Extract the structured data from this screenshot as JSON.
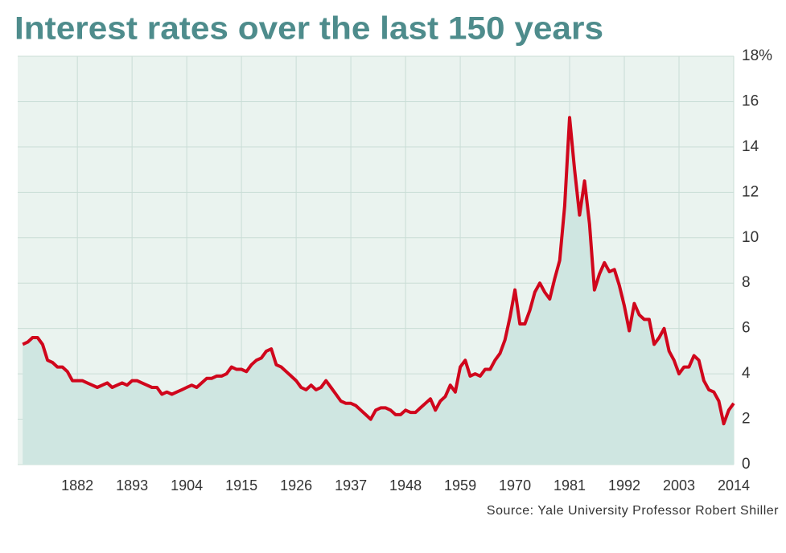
{
  "chart_data": {
    "type": "line",
    "title": "Interest rates over the last 150 years",
    "source": "Source: Yale University Professor Robert Shiller",
    "x": [
      1871,
      1872,
      1873,
      1874,
      1875,
      1876,
      1877,
      1878,
      1879,
      1880,
      1881,
      1882,
      1883,
      1884,
      1885,
      1886,
      1887,
      1888,
      1889,
      1890,
      1891,
      1892,
      1893,
      1894,
      1895,
      1896,
      1897,
      1898,
      1899,
      1900,
      1901,
      1902,
      1903,
      1904,
      1905,
      1906,
      1907,
      1908,
      1909,
      1910,
      1911,
      1912,
      1913,
      1914,
      1915,
      1916,
      1917,
      1918,
      1919,
      1920,
      1921,
      1922,
      1923,
      1924,
      1925,
      1926,
      1927,
      1928,
      1929,
      1930,
      1931,
      1932,
      1933,
      1934,
      1935,
      1936,
      1937,
      1938,
      1939,
      1940,
      1941,
      1942,
      1943,
      1944,
      1945,
      1946,
      1947,
      1948,
      1949,
      1950,
      1951,
      1952,
      1953,
      1954,
      1955,
      1956,
      1957,
      1958,
      1959,
      1960,
      1961,
      1962,
      1963,
      1964,
      1965,
      1966,
      1967,
      1968,
      1969,
      1970,
      1971,
      1972,
      1973,
      1974,
      1975,
      1976,
      1977,
      1978,
      1979,
      1980,
      1981,
      1982,
      1983,
      1984,
      1985,
      1986,
      1987,
      1988,
      1989,
      1990,
      1991,
      1992,
      1993,
      1994,
      1995,
      1996,
      1997,
      1998,
      1999,
      2000,
      2001,
      2002,
      2003,
      2004,
      2005,
      2006,
      2007,
      2008,
      2009,
      2010,
      2011,
      2012,
      2013,
      2014
    ],
    "values": [
      5.3,
      5.4,
      5.6,
      5.6,
      5.3,
      4.6,
      4.5,
      4.3,
      4.3,
      4.1,
      3.7,
      3.7,
      3.7,
      3.6,
      3.5,
      3.4,
      3.5,
      3.6,
      3.4,
      3.5,
      3.6,
      3.5,
      3.7,
      3.7,
      3.6,
      3.5,
      3.4,
      3.4,
      3.1,
      3.2,
      3.1,
      3.2,
      3.3,
      3.4,
      3.5,
      3.4,
      3.6,
      3.8,
      3.8,
      3.9,
      3.9,
      4.0,
      4.3,
      4.2,
      4.2,
      4.1,
      4.4,
      4.6,
      4.7,
      5.0,
      5.1,
      4.4,
      4.3,
      4.1,
      3.9,
      3.7,
      3.4,
      3.3,
      3.5,
      3.3,
      3.4,
      3.7,
      3.4,
      3.1,
      2.8,
      2.7,
      2.7,
      2.6,
      2.4,
      2.2,
      2.0,
      2.4,
      2.5,
      2.5,
      2.4,
      2.2,
      2.2,
      2.4,
      2.3,
      2.3,
      2.5,
      2.7,
      2.9,
      2.4,
      2.8,
      3.0,
      3.5,
      3.2,
      4.3,
      4.6,
      3.9,
      4.0,
      3.9,
      4.2,
      4.2,
      4.6,
      4.9,
      5.5,
      6.5,
      7.7,
      6.2,
      6.2,
      6.8,
      7.6,
      8.0,
      7.6,
      7.3,
      8.2,
      9.0,
      11.4,
      15.3,
      13.0,
      11.0,
      12.5,
      10.6,
      7.7,
      8.4,
      8.9,
      8.5,
      8.6,
      7.9,
      7.0,
      5.9,
      7.1,
      6.6,
      6.4,
      6.4,
      5.3,
      5.6,
      6.0,
      5.0,
      4.6,
      4.0,
      4.3,
      4.3,
      4.8,
      4.6,
      3.7,
      3.3,
      3.2,
      2.8,
      1.8,
      2.4,
      2.7
    ],
    "color": "#d0061c",
    "fill": "#cfe6e1",
    "xlim": [
      1870,
      2014
    ],
    "xticks": [
      1882,
      1893,
      1904,
      1915,
      1926,
      1937,
      1948,
      1959,
      1970,
      1981,
      1992,
      2003,
      2014
    ],
    "ylim": [
      0,
      18
    ],
    "yticks": [
      0,
      2,
      4,
      6,
      8,
      10,
      12,
      14,
      16,
      {
        "value": 18,
        "label": "18%"
      }
    ],
    "grid": true
  }
}
